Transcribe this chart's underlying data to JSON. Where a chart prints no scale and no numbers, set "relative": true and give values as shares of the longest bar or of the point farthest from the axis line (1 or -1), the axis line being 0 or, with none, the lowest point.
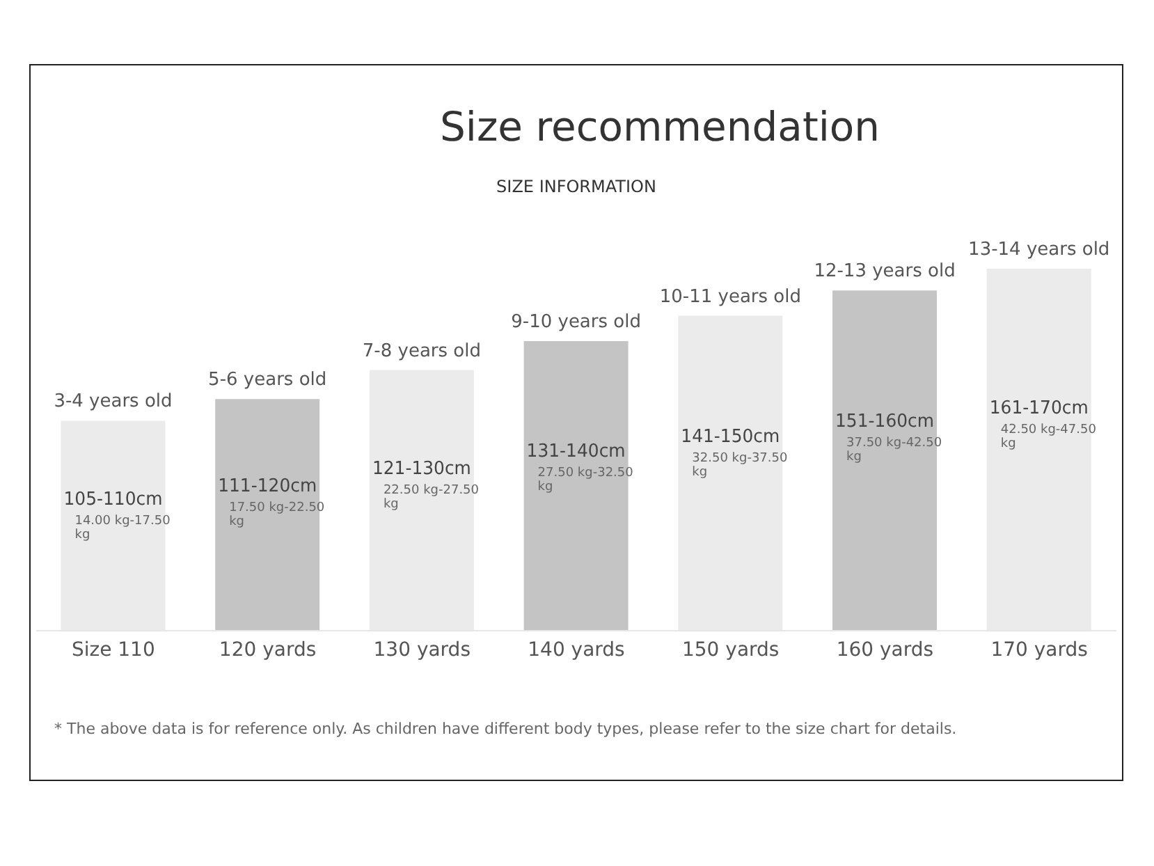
{
  "chart_data": {
    "type": "bar",
    "title": "Size recommendation",
    "subtitle": "SIZE INFORMATION",
    "relative": true,
    "categories": [
      "Size 110",
      "120 yards",
      "130 yards",
      "140 yards",
      "150 yards",
      "160 yards",
      "170 yards"
    ],
    "values": [
      0.58,
      0.64,
      0.72,
      0.8,
      0.87,
      0.94,
      1
    ],
    "colors": [
      "#ebebeb",
      "#c4c4c4",
      "#ebebeb",
      "#c4c4c4",
      "#ebebeb",
      "#c4c4c4",
      "#ebebeb"
    ],
    "annotations": [
      "3-4 years old",
      "105-110cm",
      "14.00 kg-17.50 kg",
      "5-6 years old",
      "111-120cm",
      "17.50 kg-22.50 kg",
      "7-8 years old",
      "121-130cm",
      "22.50 kg-27.50 kg",
      "9-10 years old",
      "131-140cm",
      "27.50 kg-32.50 kg",
      "10-11 years old",
      "141-150cm",
      "32.50 kg-37.50 kg",
      "12-13 years old",
      "151-160cm",
      "37.50 kg-42.50 kg",
      "13-14 years old",
      "161-170cm",
      "42.50 kg-47.50 kg",
      "* The above data is for reference only. As children have different body types, please refer to the size chart for details."
    ]
  }
}
